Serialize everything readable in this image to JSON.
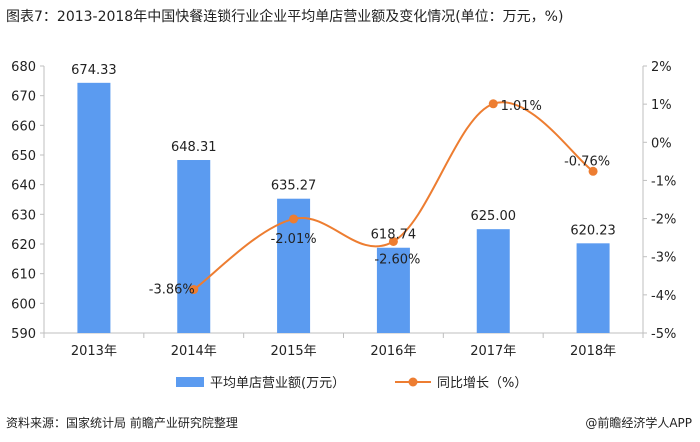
{
  "title": "图表7：2013-2018年中国快餐连锁行业企业平均单店营业额及变化情况(单位：万元，%)",
  "source": "资料来源：国家统计局 前瞻产业研究院整理",
  "brand": "@前瞻经济学人APP",
  "chart_data": {
    "type": "bar",
    "categories": [
      "2013年",
      "2014年",
      "2015年",
      "2016年",
      "2017年",
      "2018年"
    ],
    "series": [
      {
        "name": "平均单店营业额(万元）",
        "type": "bar",
        "axis": "left",
        "values": [
          674.33,
          648.31,
          635.27,
          618.74,
          625.0,
          620.23
        ],
        "labels": [
          "674.33",
          "648.31",
          "635.27",
          "618.74",
          "625.00",
          "620.23"
        ],
        "color": "#5b9bf0"
      },
      {
        "name": "同比增长（%）",
        "type": "line",
        "axis": "right",
        "values": [
          null,
          -3.86,
          -2.01,
          -2.6,
          1.01,
          -0.76
        ],
        "labels": [
          "",
          "-3.86%",
          "-2.01%",
          "-2.60%",
          "1.01%",
          "-0.76%"
        ],
        "color": "#ed7d31"
      }
    ],
    "y_left": {
      "min": 590,
      "max": 680,
      "step": 10,
      "ticks": [
        "590",
        "600",
        "610",
        "620",
        "630",
        "640",
        "650",
        "660",
        "670",
        "680"
      ]
    },
    "y_right": {
      "min": -5,
      "max": 2,
      "step": 1,
      "ticks": [
        "-5%",
        "-4%",
        "-3%",
        "-2%",
        "-1%",
        "0%",
        "1%",
        "2%"
      ]
    },
    "legend": "bottom",
    "grid": false
  }
}
